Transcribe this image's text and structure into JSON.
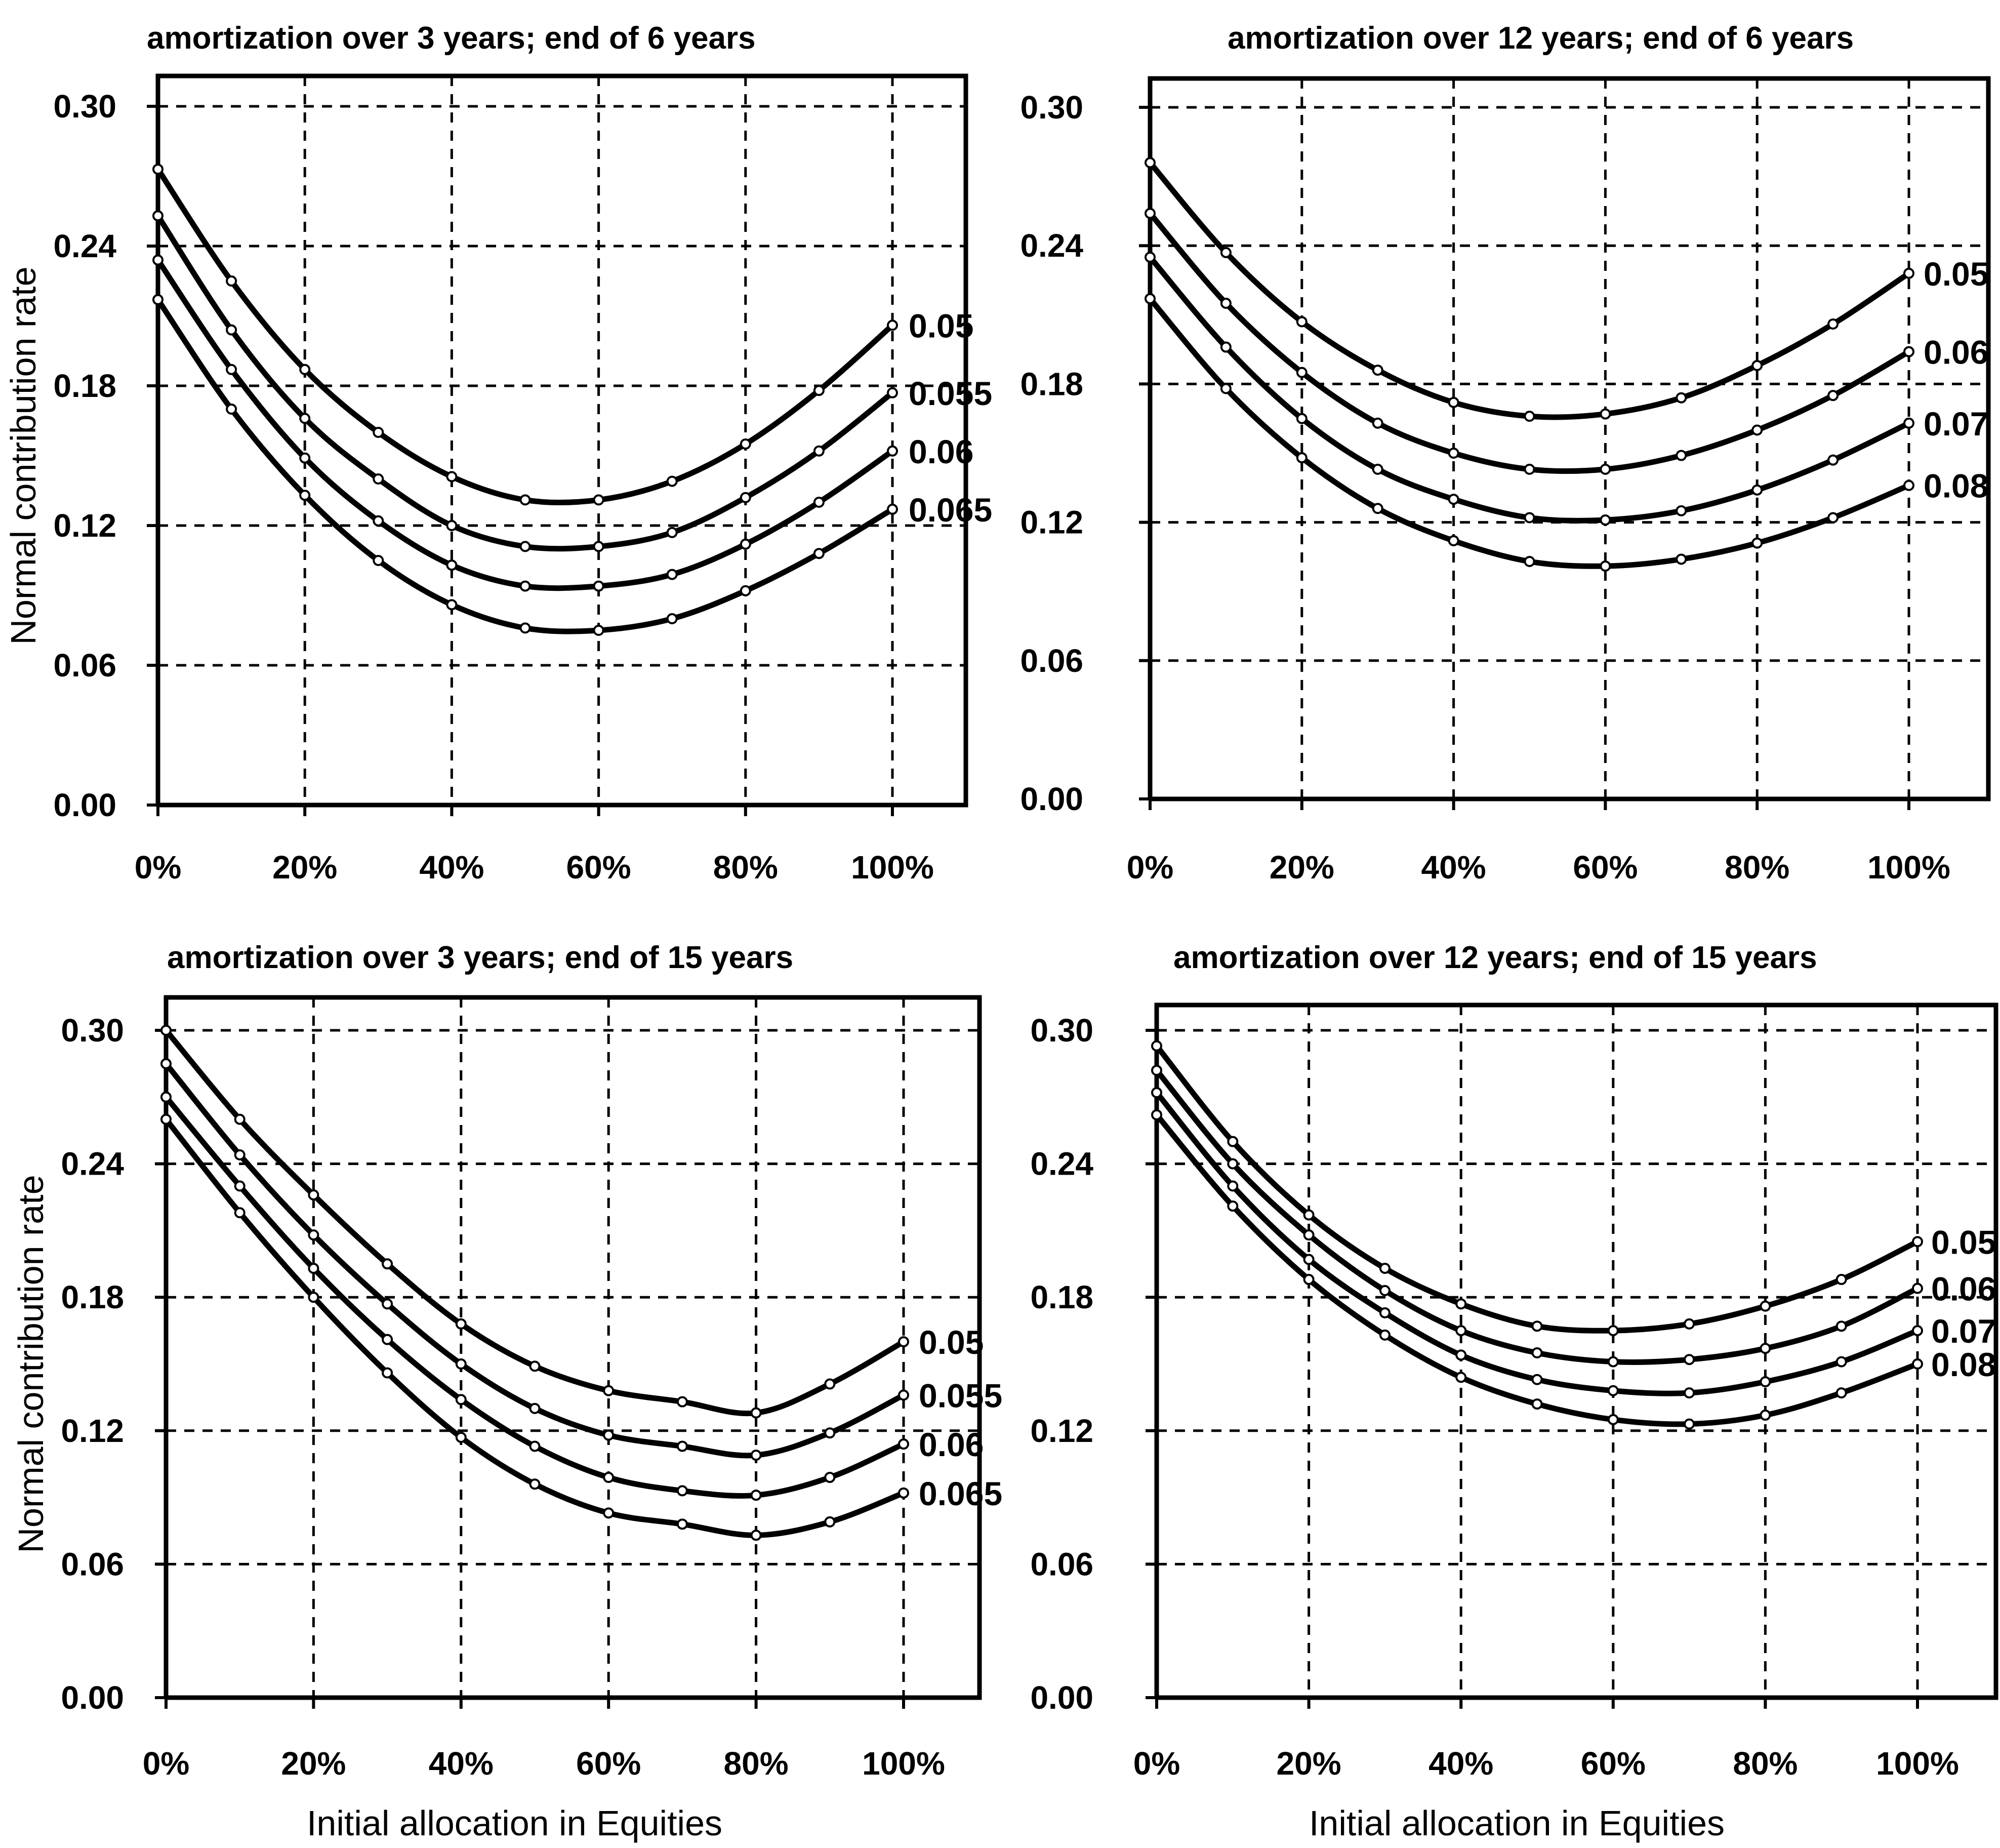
{
  "chart_data": [
    {
      "type": "line",
      "title": "amortization over 3 years; end of 6 years",
      "xlabel": "",
      "ylabel": "Normal contribution rate",
      "xlim": [
        0,
        100
      ],
      "ylim": [
        0,
        0.3
      ],
      "x_tick_labels": [
        "0%",
        "20%",
        "40%",
        "60%",
        "80%",
        "100%"
      ],
      "y_tick_labels": [
        "0.00",
        "0.06",
        "0.12",
        "0.18",
        "0.24",
        "0.30"
      ],
      "grid": true,
      "x": [
        0,
        10,
        20,
        30,
        40,
        50,
        60,
        70,
        80,
        90,
        100
      ],
      "series": [
        {
          "name": "0.05",
          "values": [
            0.273,
            0.225,
            0.187,
            0.16,
            0.141,
            0.131,
            0.131,
            0.139,
            0.155,
            0.178,
            0.206
          ]
        },
        {
          "name": "0.055",
          "values": [
            0.253,
            0.204,
            0.166,
            0.14,
            0.12,
            0.111,
            0.111,
            0.117,
            0.132,
            0.152,
            0.177
          ]
        },
        {
          "name": "0.06",
          "values": [
            0.234,
            0.187,
            0.149,
            0.122,
            0.103,
            0.094,
            0.094,
            0.099,
            0.112,
            0.13,
            0.152
          ]
        },
        {
          "name": "0.065",
          "values": [
            0.217,
            0.17,
            0.133,
            0.105,
            0.086,
            0.076,
            0.075,
            0.08,
            0.092,
            0.108,
            0.127
          ]
        }
      ]
    },
    {
      "type": "line",
      "title": "amortization over 12 years; end of 6 years",
      "xlabel": "",
      "ylabel": "",
      "xlim": [
        0,
        100
      ],
      "ylim": [
        0,
        0.3
      ],
      "x_tick_labels": [
        "0%",
        "20%",
        "40%",
        "60%",
        "80%",
        "100%"
      ],
      "y_tick_labels": [
        "0.00",
        "0.06",
        "0.12",
        "0.18",
        "0.24",
        "0.30"
      ],
      "grid": true,
      "x": [
        0,
        10,
        20,
        30,
        40,
        50,
        60,
        70,
        80,
        90,
        100
      ],
      "series": [
        {
          "name": "0.05",
          "values": [
            0.276,
            0.237,
            0.207,
            0.186,
            0.172,
            0.166,
            0.167,
            0.174,
            0.188,
            0.206,
            0.228
          ]
        },
        {
          "name": "0.06",
          "values": [
            0.254,
            0.215,
            0.185,
            0.163,
            0.15,
            0.143,
            0.143,
            0.149,
            0.16,
            0.175,
            0.194
          ]
        },
        {
          "name": "0.07",
          "values": [
            0.235,
            0.196,
            0.165,
            0.143,
            0.13,
            0.122,
            0.121,
            0.125,
            0.134,
            0.147,
            0.163
          ]
        },
        {
          "name": "0.08",
          "values": [
            0.217,
            0.178,
            0.148,
            0.126,
            0.112,
            0.103,
            0.101,
            0.104,
            0.111,
            0.122,
            0.136
          ]
        }
      ]
    },
    {
      "type": "line",
      "title": "amortization over 3 years; end of 15 years",
      "xlabel": "Initial allocation in Equities",
      "ylabel": "Normal contribution rate",
      "xlim": [
        0,
        100
      ],
      "ylim": [
        0,
        0.3
      ],
      "x_tick_labels": [
        "0%",
        "20%",
        "40%",
        "60%",
        "80%",
        "100%"
      ],
      "y_tick_labels": [
        "0.00",
        "0.06",
        "0.12",
        "0.18",
        "0.24",
        "0.30"
      ],
      "grid": true,
      "x": [
        0,
        10,
        20,
        30,
        40,
        50,
        60,
        70,
        80,
        90,
        100
      ],
      "series": [
        {
          "name": "0.05",
          "values": [
            0.3,
            0.26,
            0.226,
            0.195,
            0.168,
            0.149,
            0.138,
            0.133,
            0.128,
            0.141,
            0.16
          ]
        },
        {
          "name": "0.055",
          "values": [
            0.285,
            0.244,
            0.208,
            0.177,
            0.15,
            0.13,
            0.118,
            0.113,
            0.109,
            0.119,
            0.136
          ]
        },
        {
          "name": "0.06",
          "values": [
            0.27,
            0.23,
            0.193,
            0.161,
            0.134,
            0.113,
            0.099,
            0.093,
            0.091,
            0.099,
            0.114
          ]
        },
        {
          "name": "0.065",
          "values": [
            0.26,
            0.218,
            0.18,
            0.146,
            0.117,
            0.096,
            0.083,
            0.078,
            0.073,
            0.079,
            0.092
          ]
        }
      ]
    },
    {
      "type": "line",
      "title": "amortization over 12 years; end of 15 years",
      "xlabel": "Initial allocation in Equities",
      "ylabel": "",
      "xlim": [
        0,
        100
      ],
      "ylim": [
        0,
        0.3
      ],
      "x_tick_labels": [
        "0%",
        "20%",
        "40%",
        "60%",
        "80%",
        "100%"
      ],
      "y_tick_labels": [
        "0.00",
        "0.06",
        "0.12",
        "0.18",
        "0.24",
        "0.30"
      ],
      "grid": true,
      "x": [
        0,
        10,
        20,
        30,
        40,
        50,
        60,
        70,
        80,
        90,
        100
      ],
      "series": [
        {
          "name": "0.05",
          "values": [
            0.293,
            0.25,
            0.217,
            0.193,
            0.177,
            0.167,
            0.165,
            0.168,
            0.176,
            0.188,
            0.205
          ]
        },
        {
          "name": "0.06",
          "values": [
            0.282,
            0.24,
            0.208,
            0.183,
            0.165,
            0.155,
            0.151,
            0.152,
            0.157,
            0.167,
            0.184
          ]
        },
        {
          "name": "0.07",
          "values": [
            0.272,
            0.23,
            0.197,
            0.173,
            0.154,
            0.143,
            0.138,
            0.137,
            0.142,
            0.151,
            0.165
          ]
        },
        {
          "name": "0.08",
          "values": [
            0.262,
            0.221,
            0.188,
            0.163,
            0.144,
            0.132,
            0.125,
            0.123,
            0.127,
            0.137,
            0.15
          ]
        }
      ]
    }
  ]
}
